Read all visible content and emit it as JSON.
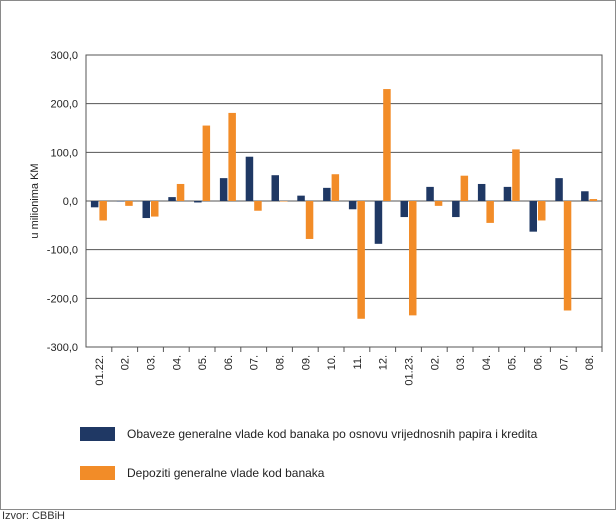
{
  "chart_data": {
    "type": "bar",
    "ylabel": "u milionima KM",
    "ylim": [
      -300,
      300
    ],
    "yticks": [
      "300,0",
      "200,0",
      "100,0",
      "0,0",
      "-100,0",
      "-200,0",
      "-300,0"
    ],
    "yticks_values": [
      300,
      200,
      100,
      0,
      -100,
      -200,
      -300
    ],
    "grid": true,
    "legend_position": "bottom",
    "categories": [
      "01.22.",
      "02.",
      "03.",
      "04.",
      "05.",
      "06.",
      "07.",
      "08.",
      "09.",
      "10.",
      "11.",
      "12.",
      "01.23.",
      "02.",
      "03.",
      "04.",
      "05.",
      "06.",
      "07.",
      "08."
    ],
    "series": [
      {
        "name": "Obaveze generalne vlade kod banaka po osnovu vrijednosnih papira i kredita",
        "color": "#1f3864",
        "values": [
          -13,
          0,
          -35,
          8,
          -3,
          47,
          91,
          53,
          11,
          27,
          -17,
          -88,
          -33,
          29,
          -33,
          35,
          29,
          -63,
          47,
          20
        ]
      },
      {
        "name": "Depoziti generalne vlade kod banaka",
        "color": "#f28c28",
        "values": [
          -40,
          -10,
          -32,
          35,
          155,
          181,
          -20,
          0,
          -78,
          55,
          -242,
          230,
          -235,
          -10,
          52,
          -45,
          106,
          -40,
          -225,
          4
        ]
      }
    ]
  },
  "source_text": "Izvor: CBBiH"
}
